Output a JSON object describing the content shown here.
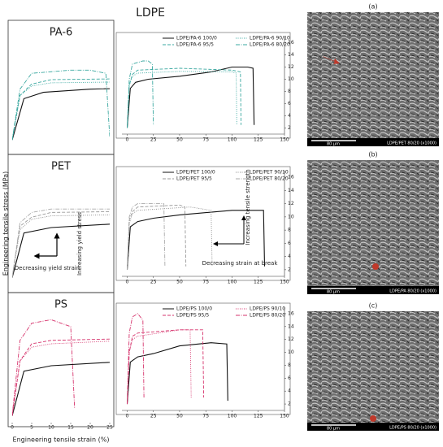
{
  "title": "LDPE",
  "y_label": "Engineering tensile stress (MPa)",
  "x_label": "Engineering tensile strain (%)",
  "chart_data": [
    {
      "type": "line",
      "title": "PA-6",
      "xlim": [
        -5,
        150
      ],
      "xticks": [
        0,
        25,
        50,
        75,
        100,
        125,
        150
      ],
      "ylim": [
        1,
        17
      ],
      "yticks": [
        2,
        4,
        6,
        8,
        10,
        12,
        14,
        16
      ],
      "zoom_xlim": [
        0,
        25
      ],
      "series": [
        {
          "name": "LDPE/PA-6 100/0",
          "color": "#111111",
          "style": "solid",
          "x": [
            0,
            3,
            8,
            20,
            50,
            80,
            100,
            115,
            120,
            121
          ],
          "values": [
            2,
            8.5,
            9.5,
            10,
            10.5,
            11.2,
            12,
            12,
            11.8,
            2.5
          ]
        },
        {
          "name": "LDPE/PA-6 90/10",
          "color": "#3aa8a0",
          "style": "dotted",
          "x": [
            0,
            2,
            5,
            10,
            50,
            100,
            104,
            104.5
          ],
          "values": [
            2,
            9,
            10.5,
            11,
            11.3,
            11.2,
            11,
            2.5
          ]
        },
        {
          "name": "LDPE/PA-6 95/5",
          "color": "#3aa8a0",
          "style": "dashed",
          "x": [
            0,
            2,
            5,
            10,
            50,
            100,
            108,
            108.5
          ],
          "values": [
            2,
            9,
            10.8,
            11.5,
            11.8,
            11.5,
            11.2,
            2.5
          ]
        },
        {
          "name": "LDPE/PA-6 80/20",
          "color": "#3aa8a0",
          "style": "dashdot",
          "x": [
            0,
            2,
            5,
            15,
            20,
            24,
            25
          ],
          "values": [
            2,
            10,
            12.5,
            13,
            13,
            12.5,
            2.5
          ]
        }
      ]
    },
    {
      "type": "line",
      "title": "PET",
      "xlim": [
        -5,
        150
      ],
      "xticks": [
        0,
        25,
        50,
        75,
        100,
        125,
        150
      ],
      "ylim": [
        1,
        17
      ],
      "yticks": [
        2,
        4,
        6,
        8,
        10,
        12,
        14,
        16
      ],
      "zoom_xlim": [
        0,
        25
      ],
      "annotations": [
        "Increasing yield stress",
        "Decreasing yield strain",
        "Increasing tensile strength",
        "Decreasing strain at break"
      ],
      "series": [
        {
          "name": "LDPE/PET 100/0",
          "color": "#111111",
          "style": "solid",
          "x": [
            0,
            3,
            10,
            25,
            50,
            100,
            130,
            131
          ],
          "values": [
            2,
            8.5,
            9.3,
            9.8,
            10.3,
            11,
            11,
            2.5
          ]
        },
        {
          "name": "LDPE/PET 90/10",
          "color": "#888888",
          "style": "dotted",
          "x": [
            0,
            2,
            5,
            10,
            60,
            80,
            81
          ],
          "values": [
            2,
            9,
            10.5,
            11,
            11.5,
            11,
            2.5
          ]
        },
        {
          "name": "LDPE/PET 95/5",
          "color": "#999999",
          "style": "dashed",
          "x": [
            0,
            2,
            5,
            10,
            50,
            55,
            56
          ],
          "values": [
            2,
            9.5,
            10.8,
            11.5,
            11.8,
            11.5,
            2.5
          ]
        },
        {
          "name": "LDPE/PET 80/20",
          "color": "#aaaaaa",
          "style": "dashdot",
          "x": [
            0,
            2,
            5,
            10,
            35,
            36
          ],
          "values": [
            2,
            10,
            11.5,
            12,
            12,
            2.5
          ]
        }
      ]
    },
    {
      "type": "line",
      "title": "PS",
      "xlim": [
        -5,
        150
      ],
      "xticks": [
        0,
        25,
        50,
        75,
        100,
        125,
        150
      ],
      "ylim": [
        1,
        17
      ],
      "yticks": [
        2,
        4,
        6,
        8,
        10,
        12,
        14,
        16
      ],
      "zoom_xlim": [
        0,
        25
      ],
      "zoom_xticks": [
        0,
        5,
        10,
        15,
        20,
        25
      ],
      "series": [
        {
          "name": "LDPE/PS 100/0",
          "color": "#111111",
          "style": "solid",
          "x": [
            0,
            3,
            10,
            25,
            50,
            80,
            95,
            96
          ],
          "values": [
            2,
            8.5,
            9.3,
            9.8,
            11,
            11.5,
            11.3,
            2.5
          ]
        },
        {
          "name": "LDPE/PS 90/10",
          "color": "#d6336c",
          "style": "dotted",
          "x": [
            0,
            2,
            5,
            10,
            50,
            60,
            61
          ],
          "values": [
            2,
            10,
            12,
            12.5,
            13.5,
            13.5,
            3
          ]
        },
        {
          "name": "LDPE/PS 95/5",
          "color": "#d6336c",
          "style": "dashed",
          "x": [
            0,
            2,
            5,
            10,
            50,
            72,
            73
          ],
          "values": [
            2,
            10,
            12.5,
            13,
            13.5,
            13.5,
            3
          ]
        },
        {
          "name": "LDPE/PS 80/20",
          "color": "#d6336c",
          "style": "dashdot",
          "x": [
            0,
            2,
            5,
            10,
            15,
            16
          ],
          "values": [
            2,
            13,
            15.5,
            16,
            15,
            3
          ]
        }
      ]
    }
  ],
  "images": [
    {
      "label": "(a)",
      "scale": "80 µm",
      "caption": "LDPE/PET 80/20 (x1000)"
    },
    {
      "label": "(b)",
      "scale": "80 µm",
      "caption": "LDPE/PA 80/20 (x1000)"
    },
    {
      "label": "(c)",
      "scale": "80 µm",
      "caption": "LDPE/PS 80/20 (x1000)"
    }
  ]
}
